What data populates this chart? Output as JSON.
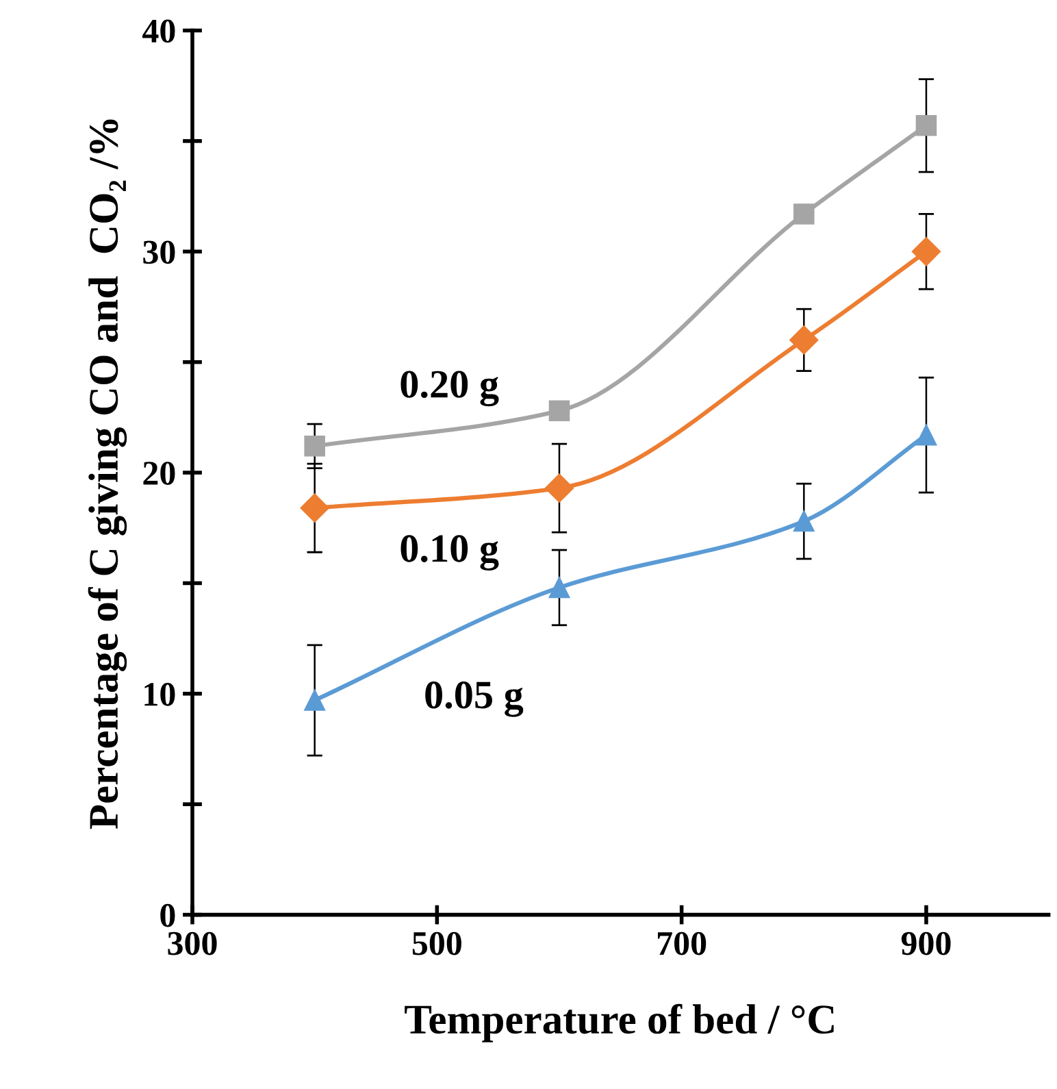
{
  "chart_data": {
    "type": "line",
    "xlabel": "Temperature of bed / °C",
    "ylabel": "Percentage of C giving CO and  CO₂ /%",
    "x": [
      400,
      600,
      800,
      900
    ],
    "series": [
      {
        "name": "0.20 g",
        "color": "#a5a5a5",
        "marker": "square",
        "values": [
          21.2,
          22.8,
          31.7,
          35.7
        ],
        "errors": [
          1.0,
          null,
          null,
          2.1
        ]
      },
      {
        "name": "0.10 g",
        "color": "#ed7d31",
        "marker": "diamond",
        "values": [
          18.4,
          19.3,
          26.0,
          30.0
        ],
        "errors": [
          2.0,
          2.0,
          1.4,
          1.7
        ]
      },
      {
        "name": "0.05 g",
        "color": "#5b9bd5",
        "marker": "triangle",
        "values": [
          9.7,
          14.8,
          17.8,
          21.7
        ],
        "errors": [
          2.5,
          1.7,
          1.7,
          2.6
        ]
      }
    ],
    "xlim": [
      300,
      1000
    ],
    "ylim": [
      0,
      40
    ],
    "xticks": [
      300,
      500,
      700,
      900
    ],
    "yticks": [
      0,
      {
        "value": 5,
        "label": null
      },
      10,
      {
        "value": 15,
        "label": null
      },
      20,
      {
        "value": 25,
        "label": null
      },
      30,
      {
        "value": 35,
        "label": null
      },
      40
    ],
    "grid": false,
    "legend": false,
    "line_style": "solid"
  }
}
